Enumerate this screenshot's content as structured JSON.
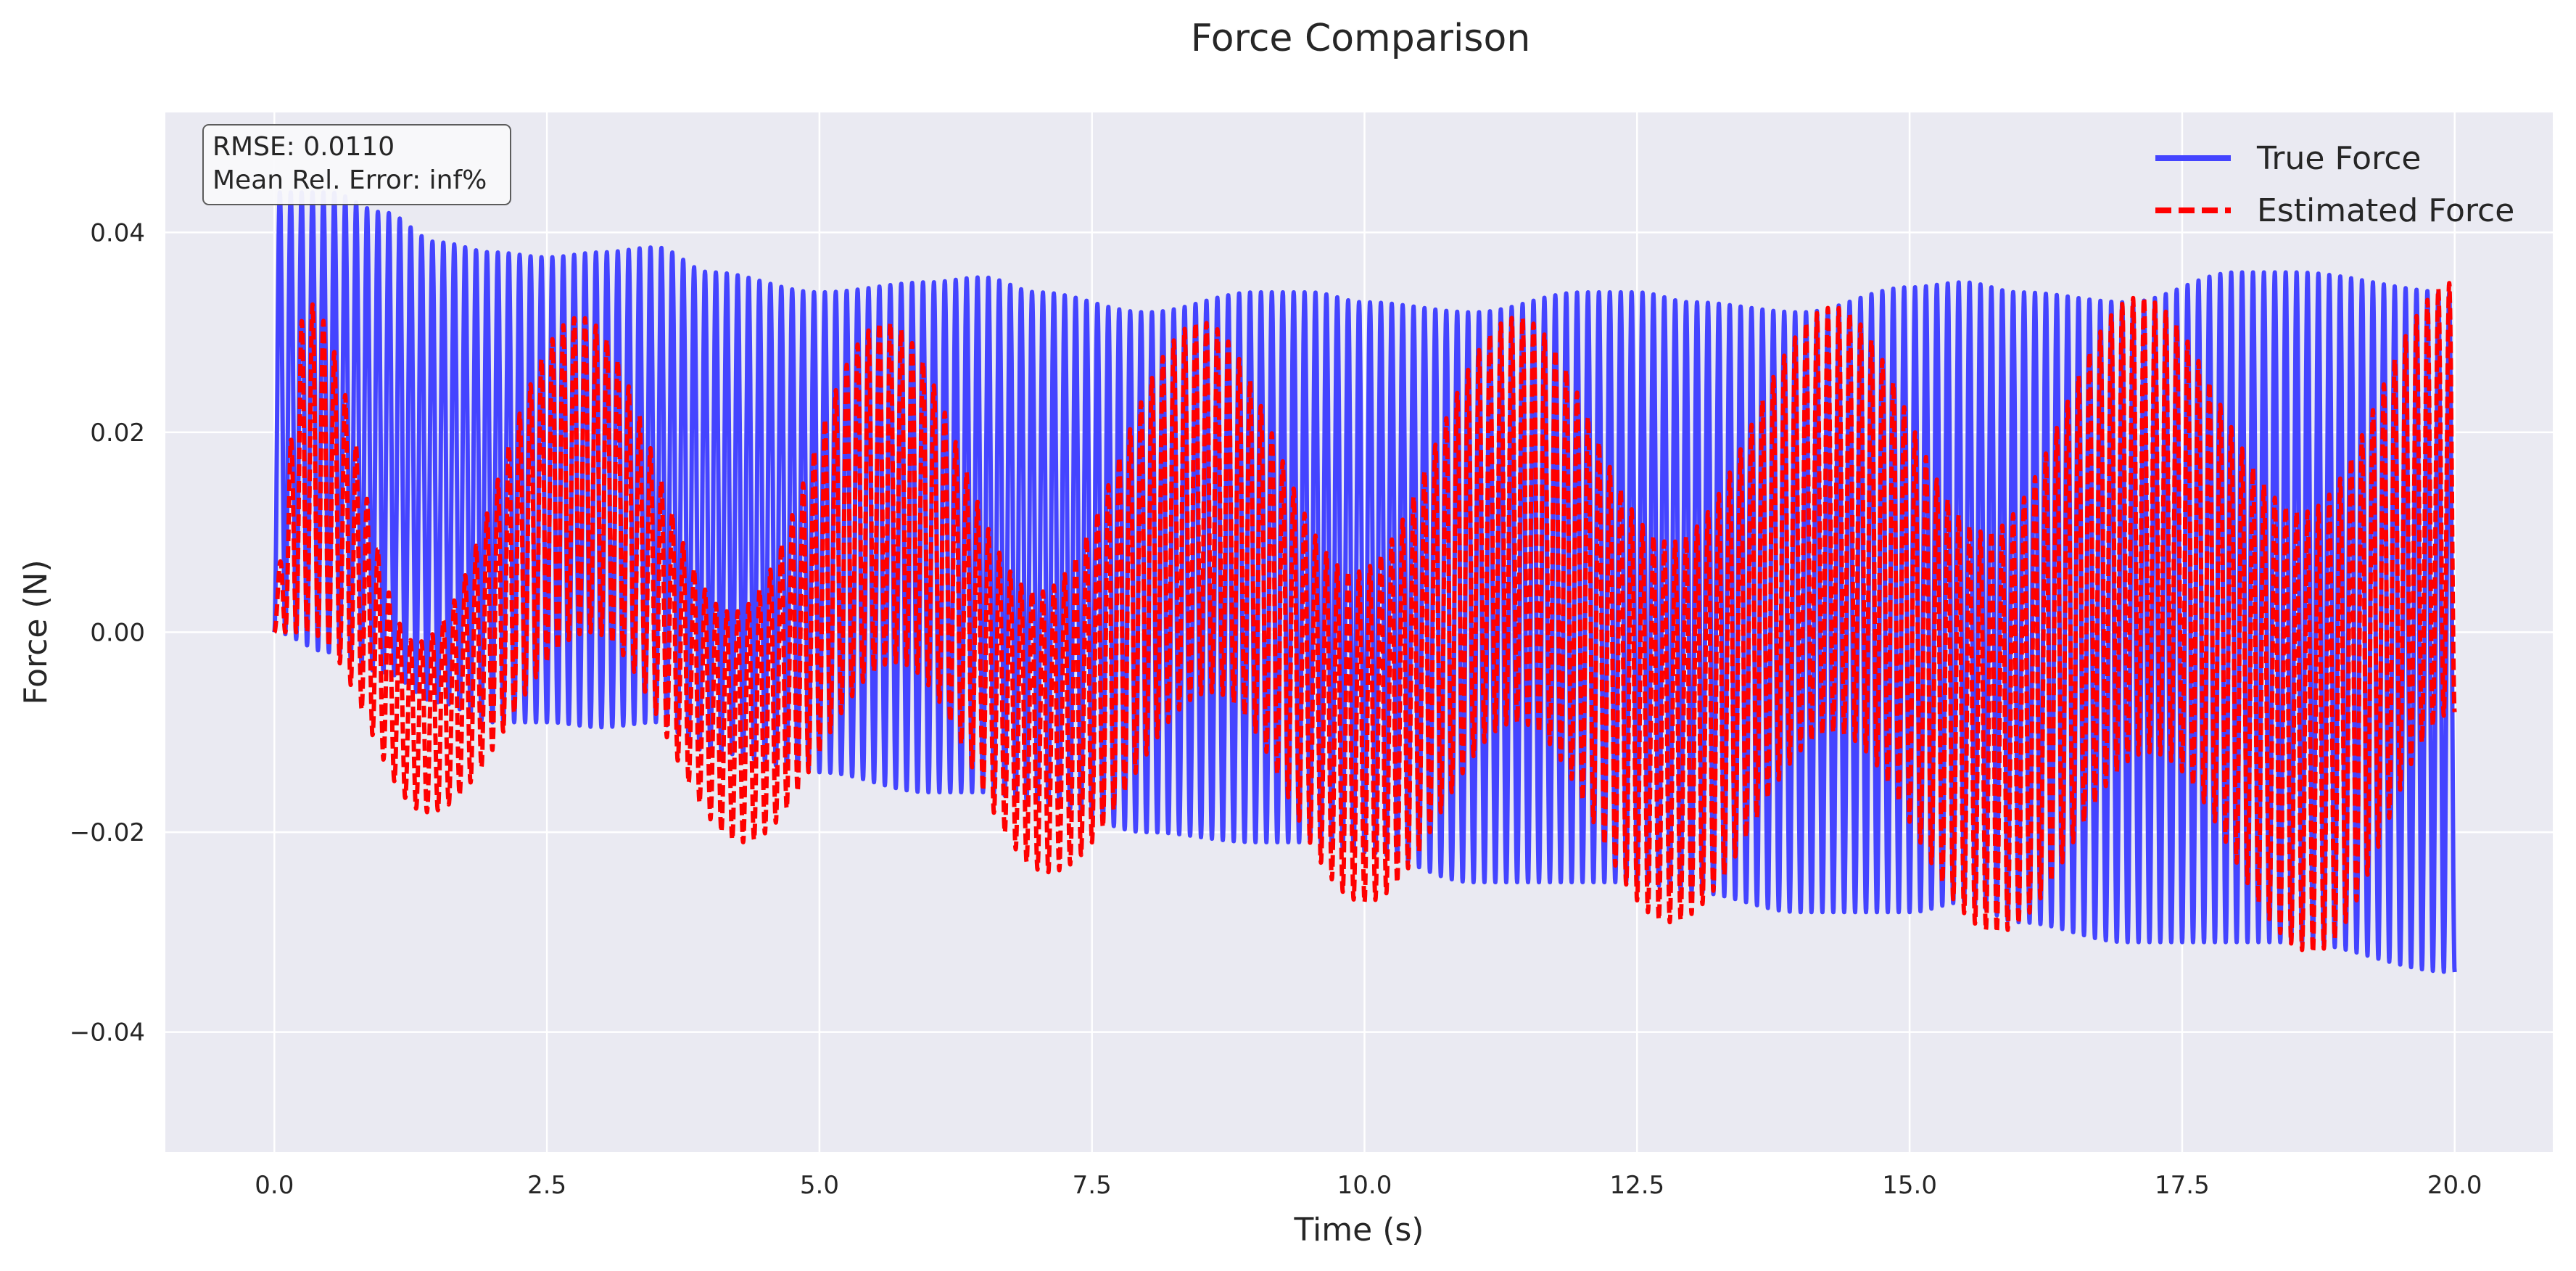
{
  "chart_data": {
    "type": "line",
    "title": "Force Comparison",
    "xlabel": "Time (s)",
    "ylabel": "Force (N)",
    "xlim": [
      -1.0,
      20.9
    ],
    "ylim": [
      -0.052,
      0.052
    ],
    "xticks": [
      0.0,
      2.5,
      5.0,
      7.5,
      10.0,
      12.5,
      15.0,
      17.5,
      20.0
    ],
    "xtick_labels": [
      "0.0",
      "2.5",
      "5.0",
      "7.5",
      "10.0",
      "12.5",
      "15.0",
      "17.5",
      "20.0"
    ],
    "yticks": [
      0.04,
      0.02,
      0.0,
      -0.02,
      -0.04
    ],
    "ytick_labels": [
      "0.04",
      "0.02",
      "0.00",
      "−0.02",
      "−0.04"
    ],
    "grid": true,
    "legend_position": "top-right",
    "series": [
      {
        "name": "True Force",
        "color": "#4444ff",
        "style": "solid",
        "upper_envelope": {
          "x": [
            0.0,
            0.5,
            1.0,
            1.5,
            2.0,
            2.5,
            3.0,
            3.5,
            4.0,
            5.0,
            6.0,
            6.5,
            7.0,
            8.0,
            9.0,
            9.5,
            10.0,
            11.0,
            12.0,
            12.5,
            13.0,
            14.0,
            15.0,
            15.5,
            16.0,
            17.0,
            18.0,
            18.5,
            20.0
          ],
          "y": [
            0.044,
            0.044,
            0.042,
            0.039,
            0.038,
            0.0375,
            0.038,
            0.0385,
            0.036,
            0.034,
            0.035,
            0.0355,
            0.034,
            0.032,
            0.034,
            0.034,
            0.033,
            0.032,
            0.034,
            0.034,
            0.033,
            0.032,
            0.0345,
            0.035,
            0.034,
            0.033,
            0.036,
            0.036,
            0.034
          ]
        },
        "lower_envelope": {
          "x": [
            0.0,
            0.5,
            1.0,
            1.5,
            2.0,
            2.5,
            3.0,
            3.5,
            4.0,
            5.0,
            6.0,
            6.5,
            7.0,
            8.0,
            9.0,
            9.5,
            10.0,
            11.0,
            12.0,
            12.5,
            13.0,
            14.0,
            15.0,
            15.5,
            16.0,
            17.0,
            18.0,
            18.5,
            20.0
          ],
          "y": [
            0.0,
            -0.002,
            -0.004,
            -0.007,
            -0.009,
            -0.009,
            -0.0095,
            -0.009,
            -0.012,
            -0.014,
            -0.016,
            -0.016,
            -0.017,
            -0.02,
            -0.021,
            -0.021,
            -0.022,
            -0.025,
            -0.025,
            -0.025,
            -0.026,
            -0.028,
            -0.028,
            -0.027,
            -0.029,
            -0.031,
            -0.031,
            -0.031,
            -0.034
          ]
        },
        "middle_curve": {
          "x": [
            0.0,
            1.5,
            2.9,
            4.4,
            5.9,
            7.3,
            8.8,
            10.1,
            11.1,
            12.7,
            14.3,
            15.8,
            17.1,
            18.5,
            20.0
          ],
          "y": [
            0.03,
            0.015,
            0.03,
            0.014,
            0.03,
            0.013,
            0.029,
            0.014,
            0.029,
            0.015,
            0.028,
            0.014,
            0.027,
            0.013,
            0.03
          ]
        },
        "oscillation_frequency_hz": 10
      },
      {
        "name": "Estimated Force",
        "color": "#ff0000",
        "style": "dashed",
        "upper_envelope": {
          "x": [
            0.0,
            0.3,
            1.3,
            2.8,
            4.2,
            5.6,
            7.0,
            8.5,
            9.9,
            11.4,
            12.8,
            14.3,
            15.7,
            17.1,
            18.6,
            20.0
          ],
          "y": [
            0.005,
            0.033,
            -0.001,
            0.0315,
            0.002,
            0.031,
            0.004,
            0.031,
            0.006,
            0.0315,
            0.009,
            0.0325,
            0.01,
            0.0335,
            0.012,
            0.035
          ]
        },
        "lower_envelope": {
          "x": [
            0.0,
            0.3,
            1.4,
            2.9,
            4.3,
            5.7,
            7.1,
            8.6,
            10.0,
            11.4,
            12.8,
            14.3,
            15.8,
            17.2,
            18.7,
            20.0
          ],
          "y": [
            0.0,
            0.0,
            -0.018,
            0.0,
            -0.021,
            -0.003,
            -0.024,
            -0.006,
            -0.027,
            -0.009,
            -0.029,
            -0.01,
            -0.03,
            -0.012,
            -0.032,
            -0.008
          ]
        },
        "oscillation_frequency_hz": 10
      }
    ],
    "annotation": {
      "lines": [
        "RMSE: 0.0110",
        "Mean Rel. Error: inf%"
      ],
      "position": "top-left"
    }
  }
}
